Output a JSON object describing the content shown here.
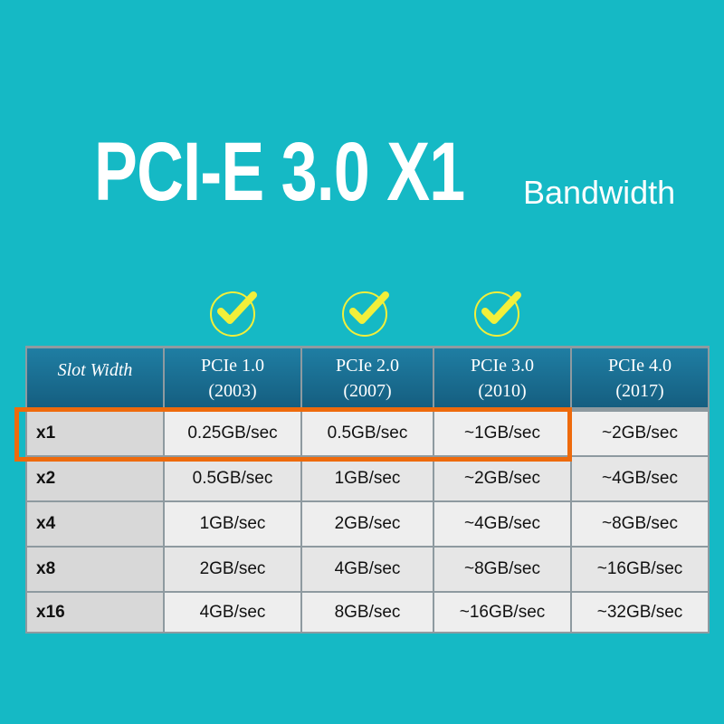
{
  "title": "PCI-E 3.0 X1",
  "subtitle": "Bandwidth",
  "colors": {
    "background": "#15b9c5",
    "header": "#1a6d90",
    "highlight": "#ee6a0c",
    "check": "#f2ef3a"
  },
  "checkmarks": [
    "PCIe 1.0",
    "PCIe 2.0",
    "PCIe 3.0"
  ],
  "highlighted_row": "x1",
  "table": {
    "headers": [
      {
        "line1": "Slot Width",
        "line2": ""
      },
      {
        "line1": "PCIe 1.0",
        "line2": "(2003)"
      },
      {
        "line1": "PCIe 2.0",
        "line2": "(2007)"
      },
      {
        "line1": "PCIe 3.0",
        "line2": "(2010)"
      },
      {
        "line1": "PCIe 4.0",
        "line2": "(2017)"
      }
    ],
    "rows": [
      [
        "x1",
        "0.25GB/sec",
        "0.5GB/sec",
        "~1GB/sec",
        "~2GB/sec"
      ],
      [
        "x2",
        "0.5GB/sec",
        "1GB/sec",
        "~2GB/sec",
        "~4GB/sec"
      ],
      [
        "x4",
        "1GB/sec",
        "2GB/sec",
        "~4GB/sec",
        "~8GB/sec"
      ],
      [
        "x8",
        "2GB/sec",
        "4GB/sec",
        "~8GB/sec",
        "~16GB/sec"
      ],
      [
        "x16",
        "4GB/sec",
        "8GB/sec",
        "~16GB/sec",
        "~32GB/sec"
      ]
    ]
  }
}
